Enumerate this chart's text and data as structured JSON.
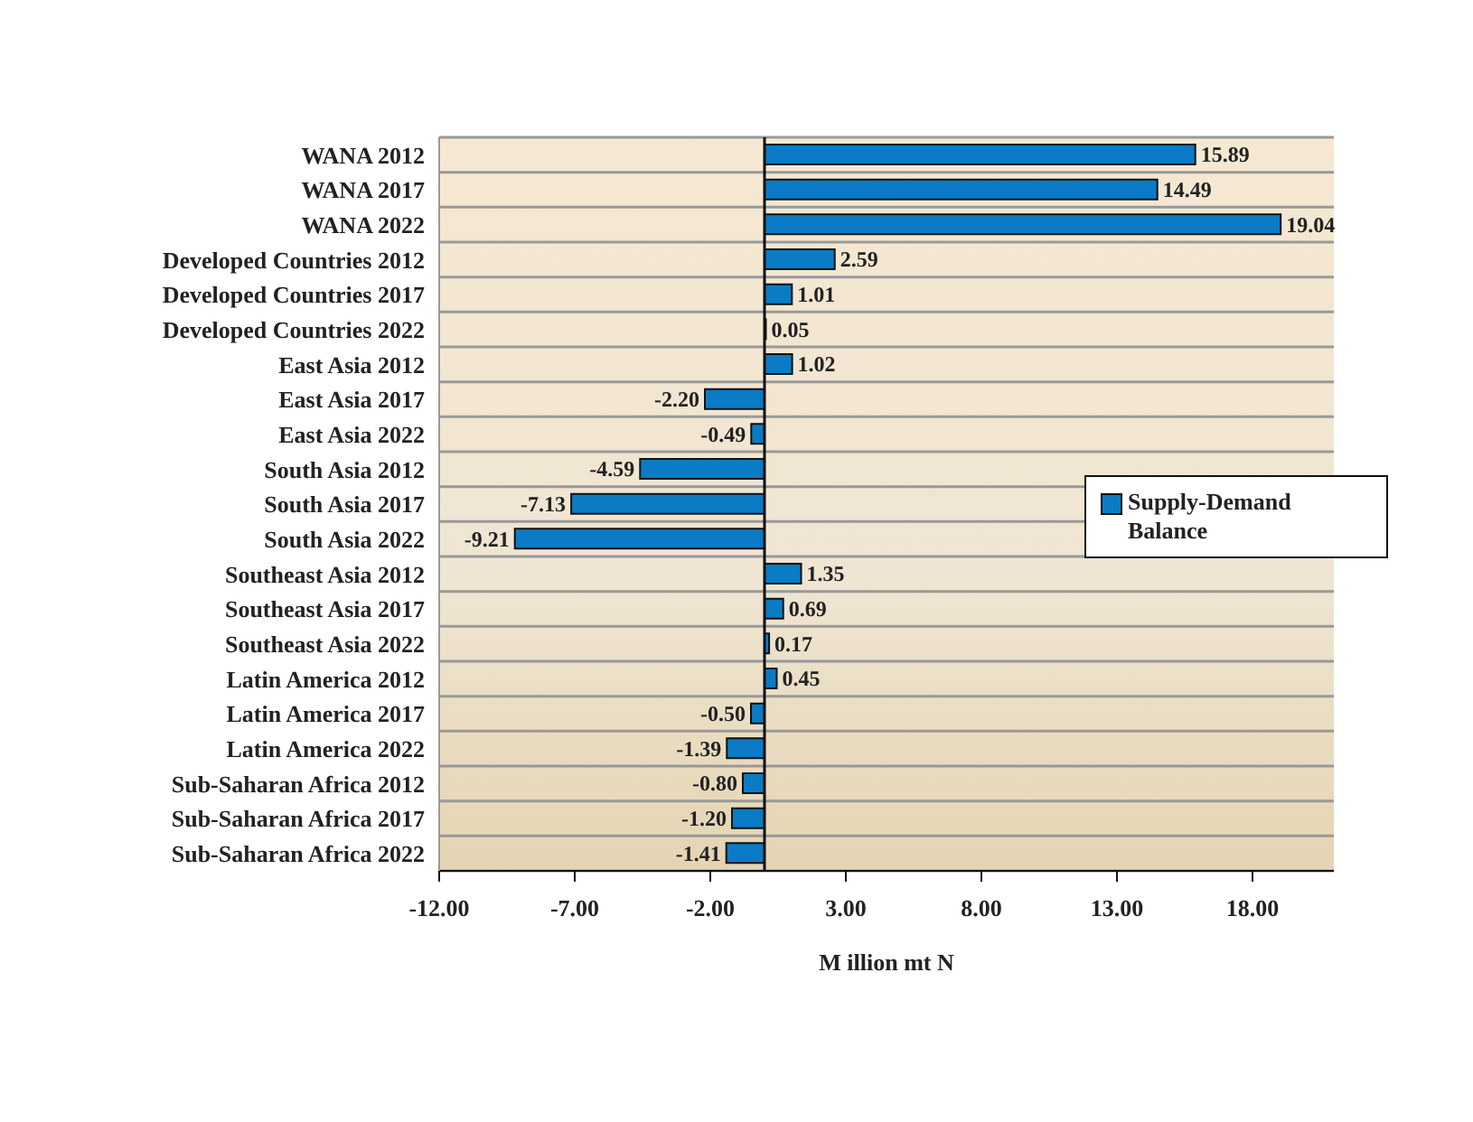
{
  "chart_data": {
    "type": "bar",
    "orientation": "horizontal",
    "xlabel": "M illion mt N",
    "categories": [
      "WANA 2012",
      "WANA 2017",
      "WANA 2022",
      "Developed Countries 2012",
      "Developed Countries 2017",
      "Developed Countries 2022",
      "East Asia 2012",
      "East Asia 2017",
      "East Asia 2022",
      "South Asia 2012",
      "South Asia 2017",
      "South Asia 2022",
      "Southeast Asia 2012",
      "Southeast Asia 2017",
      "Southeast Asia 2022",
      "Latin America 2012",
      "Latin America 2017",
      "Latin America 2022",
      "Sub-Saharan Africa 2012",
      "Sub-Saharan Africa 2017",
      "Sub-Saharan Africa 2022"
    ],
    "series": [
      {
        "name": "Supply-Demand Balance",
        "color": "#0a7bc4",
        "values": [
          15.89,
          14.49,
          19.04,
          2.59,
          1.01,
          0.05,
          1.02,
          -2.2,
          -0.49,
          -4.59,
          -7.13,
          -9.21,
          1.35,
          0.69,
          0.17,
          0.45,
          -0.5,
          -1.39,
          -0.8,
          -1.2,
          -1.41
        ],
        "value_labels": [
          "15.89",
          "14.49",
          "19.04",
          "2.59",
          "1.01",
          "0.05",
          "1.02",
          "-2.20",
          "-0.49",
          "-4.59",
          "-7.13",
          "-9.21",
          "1.35",
          "0.69",
          "0.17",
          "0.45",
          "-0.50",
          "-1.39",
          "-0.80",
          "-1.20",
          "-1.41"
        ]
      }
    ],
    "xlim": [
      -12,
      21
    ],
    "xticks": [
      {
        "value": -12,
        "label": "-12.00"
      },
      {
        "value": -7,
        "label": "-7.00"
      },
      {
        "value": -2,
        "label": "-2.00"
      },
      {
        "value": 3,
        "label": "3.00"
      },
      {
        "value": 8,
        "label": "8.00"
      },
      {
        "value": 13,
        "label": "13.00"
      },
      {
        "value": 18,
        "label": "18.00"
      }
    ],
    "grid": "y",
    "legend": "right"
  }
}
